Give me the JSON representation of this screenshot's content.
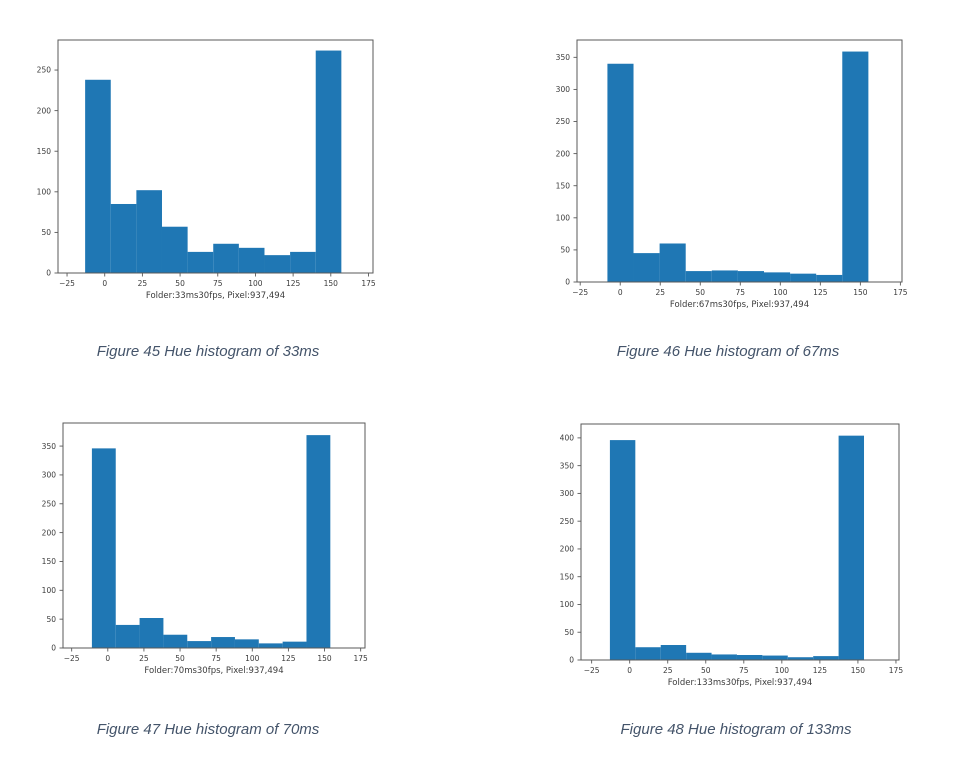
{
  "page": {
    "background": "#ffffff"
  },
  "styles": {
    "bar_color": "#1f77b4",
    "axis_color": "#595959",
    "tick_label_color": "#3b3b3b",
    "caption_color": "#44546A"
  },
  "chart_data": [
    {
      "type": "bar",
      "subtype": "histogram",
      "caption": "Figure 45 Hue histogram of 33ms",
      "xlabel": "Folder:33ms30fps, Pixel:937,494",
      "ylabel": "",
      "title": "",
      "grid": false,
      "legend": null,
      "xlim": [
        -31,
        178
      ],
      "ylim": [
        0,
        287
      ],
      "xticks": [
        -25,
        0,
        25,
        50,
        75,
        100,
        125,
        150,
        175
      ],
      "yticks": [
        0,
        50,
        100,
        150,
        200,
        250
      ],
      "bin_start": -13,
      "bin_end": 157,
      "values": [
        238,
        85,
        102,
        57,
        26,
        36,
        31,
        22,
        26,
        274
      ]
    },
    {
      "type": "bar",
      "subtype": "histogram",
      "caption": "Figure 46 Hue histogram of 67ms",
      "xlabel": "Folder:67ms30fps, Pixel:937,494",
      "ylabel": "",
      "title": "",
      "grid": false,
      "legend": null,
      "xlim": [
        -27,
        176
      ],
      "ylim": [
        0,
        377
      ],
      "xticks": [
        -25,
        0,
        25,
        50,
        75,
        100,
        125,
        150,
        175
      ],
      "yticks": [
        0,
        50,
        100,
        150,
        200,
        250,
        300,
        350
      ],
      "bin_start": -8,
      "bin_end": 155,
      "values": [
        340,
        45,
        60,
        17,
        18,
        17,
        15,
        13,
        11,
        359
      ]
    },
    {
      "type": "bar",
      "subtype": "histogram",
      "caption": "Figure 47 Hue histogram of 70ms",
      "xlabel": "Folder:70ms30fps, Pixel:937,494",
      "ylabel": "",
      "title": "",
      "grid": false,
      "legend": null,
      "xlim": [
        -31,
        178
      ],
      "ylim": [
        0,
        390
      ],
      "xticks": [
        -25,
        0,
        25,
        50,
        75,
        100,
        125,
        150,
        175
      ],
      "yticks": [
        0,
        50,
        100,
        150,
        200,
        250,
        300,
        350
      ],
      "bin_start": -11,
      "bin_end": 154,
      "values": [
        346,
        40,
        52,
        23,
        12,
        19,
        15,
        8,
        11,
        369
      ]
    },
    {
      "type": "bar",
      "subtype": "histogram",
      "caption": "Figure 48 Hue histogram of 133ms",
      "xlabel": "Folder:133ms30fps, Pixel:937,494",
      "ylabel": "",
      "title": "",
      "grid": false,
      "legend": null,
      "xlim": [
        -32,
        177
      ],
      "ylim": [
        0,
        425
      ],
      "xticks": [
        -25,
        0,
        25,
        50,
        75,
        100,
        125,
        150,
        175
      ],
      "yticks": [
        0,
        50,
        100,
        150,
        200,
        250,
        300,
        350,
        400
      ],
      "bin_start": -13,
      "bin_end": 154,
      "values": [
        396,
        23,
        27,
        13,
        10,
        9,
        8,
        5,
        7,
        404
      ]
    }
  ]
}
